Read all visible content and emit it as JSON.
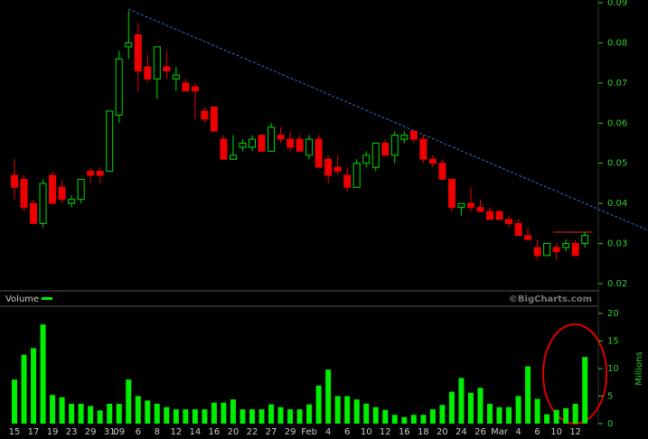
{
  "chart_data": {
    "type": "candlestick",
    "categories": [
      "15",
      null,
      "17",
      null,
      "19",
      null,
      "23",
      null,
      "29",
      null,
      "31",
      "09",
      null,
      "6",
      null,
      "8",
      null,
      "12",
      null,
      "14",
      null,
      "16",
      null,
      "20",
      null,
      "22",
      null,
      "27",
      null,
      "29",
      null,
      "Feb",
      null,
      "4",
      null,
      "6",
      null,
      "10",
      null,
      "12",
      null,
      "16",
      null,
      "18",
      null,
      "20",
      null,
      "24",
      null,
      "26",
      null,
      "Mar",
      null,
      "4",
      null,
      "6",
      null,
      "10",
      null,
      "12",
      null
    ],
    "open": [
      0.047,
      0.046,
      0.04,
      0.035,
      0.047,
      0.044,
      0.04,
      0.041,
      0.048,
      0.048,
      0.048,
      0.062,
      0.079,
      0.082,
      0.074,
      0.071,
      0.074,
      0.071,
      0.07,
      0.069,
      0.063,
      0.064,
      0.056,
      0.051,
      0.054,
      0.054,
      0.057,
      0.053,
      0.057,
      0.056,
      0.056,
      0.052,
      0.056,
      0.051,
      0.049,
      0.047,
      0.044,
      0.05,
      0.049,
      0.055,
      0.052,
      0.056,
      0.058,
      0.056,
      0.051,
      0.05,
      0.046,
      0.039,
      0.04,
      0.039,
      0.038,
      0.038,
      0.036,
      0.035,
      0.032,
      0.029,
      0.027,
      0.029,
      0.029,
      0.03,
      0.03
    ],
    "high": [
      0.051,
      0.047,
      0.041,
      0.046,
      0.048,
      0.046,
      0.042,
      0.046,
      0.049,
      0.049,
      0.063,
      0.078,
      0.088,
      0.085,
      0.077,
      0.079,
      0.078,
      0.074,
      0.071,
      0.07,
      0.064,
      0.064,
      0.057,
      0.057,
      0.056,
      0.057,
      0.057,
      0.06,
      0.059,
      0.058,
      0.057,
      0.057,
      0.057,
      0.052,
      0.052,
      0.049,
      0.051,
      0.053,
      0.055,
      0.056,
      0.058,
      0.058,
      0.058,
      0.057,
      0.052,
      0.051,
      0.046,
      0.04,
      0.044,
      0.041,
      0.039,
      0.038,
      0.037,
      0.036,
      0.034,
      0.031,
      0.03,
      0.03,
      0.031,
      0.031,
      0.033
    ],
    "low": [
      0.041,
      0.038,
      0.035,
      0.034,
      0.04,
      0.04,
      0.039,
      0.04,
      0.045,
      0.045,
      0.048,
      0.06,
      0.076,
      0.068,
      0.07,
      0.066,
      0.071,
      0.068,
      0.068,
      0.061,
      0.06,
      0.058,
      0.051,
      0.051,
      0.053,
      0.053,
      0.053,
      0.053,
      0.055,
      0.053,
      0.053,
      0.051,
      0.049,
      0.045,
      0.047,
      0.043,
      0.044,
      0.049,
      0.048,
      0.052,
      0.05,
      0.055,
      0.055,
      0.05,
      0.049,
      0.046,
      0.038,
      0.037,
      0.038,
      0.038,
      0.036,
      0.036,
      0.034,
      0.032,
      0.031,
      0.026,
      0.027,
      0.026,
      0.028,
      0.027,
      0.029
    ],
    "close": [
      0.044,
      0.039,
      0.035,
      0.045,
      0.04,
      0.041,
      0.041,
      0.046,
      0.047,
      0.047,
      0.063,
      0.076,
      0.08,
      0.073,
      0.071,
      0.079,
      0.073,
      0.072,
      0.068,
      0.068,
      0.061,
      0.058,
      0.051,
      0.052,
      0.055,
      0.056,
      0.053,
      0.059,
      0.056,
      0.054,
      0.053,
      0.056,
      0.049,
      0.047,
      0.048,
      0.044,
      0.05,
      0.052,
      0.055,
      0.052,
      0.057,
      0.057,
      0.056,
      0.051,
      0.05,
      0.046,
      0.039,
      0.04,
      0.039,
      0.038,
      0.036,
      0.036,
      0.035,
      0.032,
      0.031,
      0.027,
      0.03,
      0.028,
      0.03,
      0.027,
      0.032
    ],
    "volume": [
      8.0,
      12.5,
      13.7,
      18.0,
      5.2,
      4.8,
      3.6,
      3.6,
      3.2,
      2.4,
      3.6,
      3.6,
      8.0,
      5.0,
      4.2,
      3.6,
      3.0,
      2.6,
      2.6,
      2.6,
      2.6,
      3.8,
      3.8,
      4.4,
      2.6,
      2.6,
      2.6,
      3.5,
      3.0,
      2.6,
      2.6,
      3.5,
      6.9,
      9.8,
      5.0,
      5.0,
      4.4,
      3.6,
      3.0,
      2.5,
      1.6,
      1.2,
      1.6,
      1.6,
      2.6,
      3.4,
      5.8,
      8.3,
      5.6,
      6.5,
      3.6,
      3.0,
      3.0,
      5.0,
      10.4,
      4.5,
      1.7,
      2.5,
      2.8,
      3.6,
      12.1
    ],
    "ylim": [
      0.02,
      0.09
    ],
    "yticks": [
      0.02,
      0.03,
      0.04,
      0.05,
      0.06,
      0.07,
      0.08,
      0.09
    ],
    "volume_ylim": [
      0,
      20
    ],
    "volume_yticks": [
      0,
      5,
      10,
      15,
      20
    ],
    "volume_label": "Volume",
    "volume_axis_label": "Millions",
    "source": "©BigCharts.com",
    "up_color": "#00dd00",
    "down_color": "#ee0000",
    "volume_color": "#00ee00",
    "axis_color": "#33cc33"
  }
}
